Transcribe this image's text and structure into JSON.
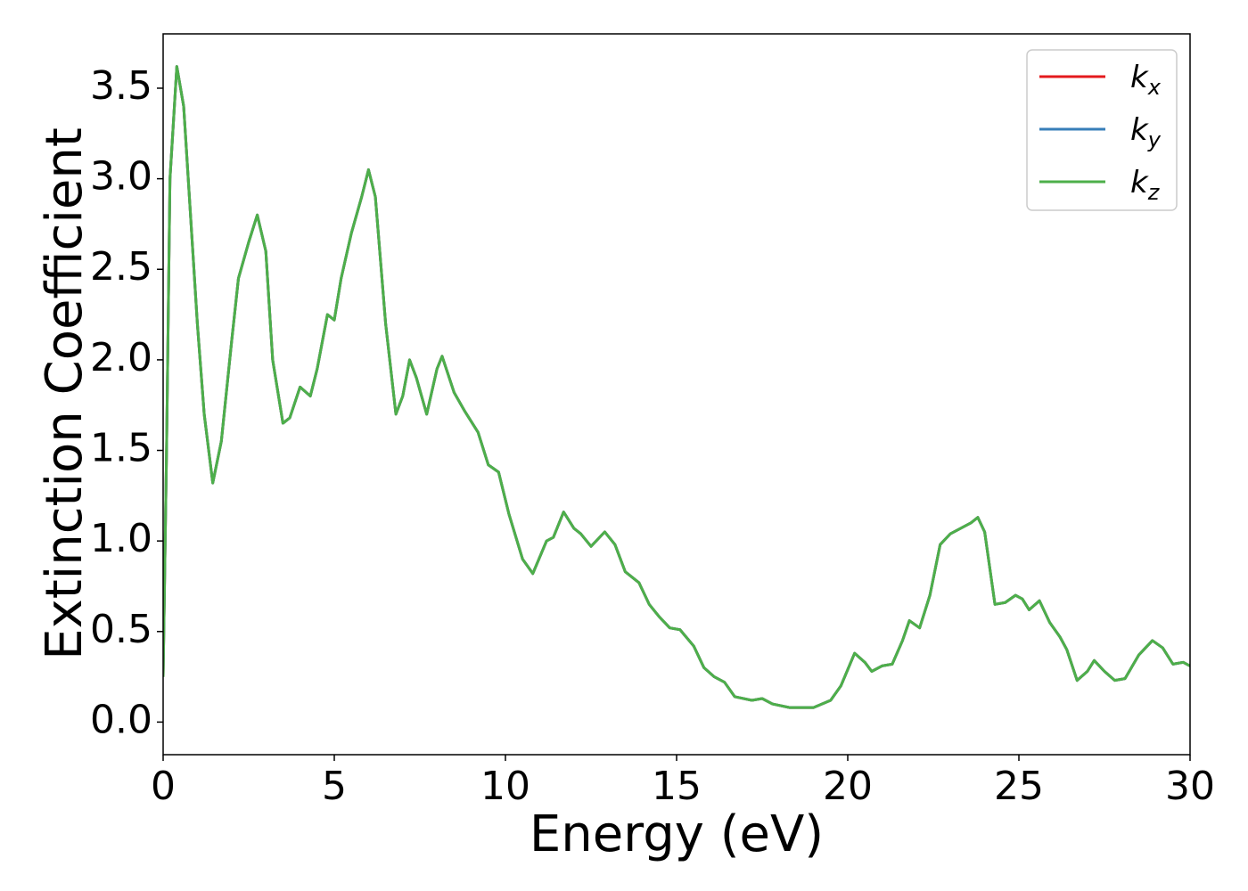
{
  "chart_data": {
    "type": "line",
    "xlabel": "Energy (eV)",
    "ylabel": "Extinction Coefficient",
    "xlim": [
      0,
      30
    ],
    "ylim": [
      -0.18,
      3.8
    ],
    "xticks": [
      0,
      5,
      10,
      15,
      20,
      25,
      30
    ],
    "yticks": [
      {
        "value": 0,
        "label": "0.0"
      },
      0.5,
      {
        "value": 1,
        "label": "1.0"
      },
      1.5,
      {
        "value": 2,
        "label": "2.0"
      },
      2.5,
      {
        "value": 3,
        "label": "3.0"
      },
      3.5
    ],
    "legend": "upper right",
    "grid": false,
    "x": [
      0,
      0.1,
      0.2,
      0.4,
      0.6,
      0.8,
      1.0,
      1.2,
      1.45,
      1.7,
      2.0,
      2.2,
      2.5,
      2.75,
      3.0,
      3.2,
      3.5,
      3.7,
      4.0,
      4.3,
      4.5,
      4.8,
      5.0,
      5.2,
      5.5,
      5.8,
      6.0,
      6.2,
      6.5,
      6.8,
      7.0,
      7.2,
      7.4,
      7.7,
      8.0,
      8.15,
      8.5,
      8.8,
      9.2,
      9.5,
      9.8,
      10.1,
      10.5,
      10.8,
      11.2,
      11.4,
      11.7,
      12.0,
      12.2,
      12.5,
      12.9,
      13.2,
      13.5,
      13.9,
      14.2,
      14.5,
      14.8,
      15.1,
      15.5,
      15.8,
      16.1,
      16.4,
      16.7,
      17.2,
      17.5,
      17.8,
      18.3,
      19.0,
      19.5,
      19.8,
      20.2,
      20.5,
      20.7,
      21.0,
      21.3,
      21.6,
      21.8,
      22.1,
      22.4,
      22.7,
      23.0,
      23.3,
      23.6,
      23.8,
      24.0,
      24.3,
      24.6,
      24.9,
      25.1,
      25.3,
      25.6,
      25.9,
      26.2,
      26.4,
      26.7,
      27.0,
      27.2,
      27.5,
      27.8,
      28.1,
      28.5,
      28.9,
      29.2,
      29.5,
      29.8,
      30.0
    ],
    "series": [
      {
        "name": "kx",
        "color": "#e41a1c",
        "values": [
          0.25,
          1.5,
          3.0,
          3.62,
          3.4,
          2.8,
          2.2,
          1.7,
          1.32,
          1.55,
          2.1,
          2.45,
          2.65,
          2.8,
          2.6,
          2.0,
          1.65,
          1.68,
          1.85,
          1.8,
          1.95,
          2.25,
          2.22,
          2.45,
          2.7,
          2.9,
          3.05,
          2.9,
          2.2,
          1.7,
          1.8,
          2.0,
          1.9,
          1.7,
          1.95,
          2.02,
          1.82,
          1.72,
          1.6,
          1.42,
          1.38,
          1.15,
          0.9,
          0.82,
          1.0,
          1.02,
          1.16,
          1.07,
          1.04,
          0.97,
          1.05,
          0.98,
          0.83,
          0.77,
          0.65,
          0.58,
          0.52,
          0.51,
          0.42,
          0.3,
          0.25,
          0.22,
          0.14,
          0.12,
          0.13,
          0.1,
          0.08,
          0.08,
          0.12,
          0.2,
          0.38,
          0.33,
          0.28,
          0.31,
          0.32,
          0.45,
          0.56,
          0.52,
          0.7,
          0.98,
          1.04,
          1.07,
          1.1,
          1.13,
          1.05,
          0.65,
          0.66,
          0.7,
          0.68,
          0.62,
          0.67,
          0.55,
          0.47,
          0.4,
          0.23,
          0.28,
          0.34,
          0.28,
          0.23,
          0.24,
          0.37,
          0.45,
          0.41,
          0.32,
          0.33,
          0.31
        ]
      },
      {
        "name": "ky",
        "color": "#377eb8",
        "values": [
          0.25,
          1.5,
          3.0,
          3.62,
          3.4,
          2.8,
          2.2,
          1.7,
          1.32,
          1.55,
          2.1,
          2.45,
          2.65,
          2.8,
          2.6,
          2.0,
          1.65,
          1.68,
          1.85,
          1.8,
          1.95,
          2.25,
          2.22,
          2.45,
          2.7,
          2.9,
          3.05,
          2.9,
          2.2,
          1.7,
          1.8,
          2.0,
          1.9,
          1.7,
          1.95,
          2.02,
          1.82,
          1.72,
          1.6,
          1.42,
          1.38,
          1.15,
          0.9,
          0.82,
          1.0,
          1.02,
          1.16,
          1.07,
          1.04,
          0.97,
          1.05,
          0.98,
          0.83,
          0.77,
          0.65,
          0.58,
          0.52,
          0.51,
          0.42,
          0.3,
          0.25,
          0.22,
          0.14,
          0.12,
          0.13,
          0.1,
          0.08,
          0.08,
          0.12,
          0.2,
          0.38,
          0.33,
          0.28,
          0.31,
          0.32,
          0.45,
          0.56,
          0.52,
          0.7,
          0.98,
          1.04,
          1.07,
          1.1,
          1.13,
          1.05,
          0.65,
          0.66,
          0.7,
          0.68,
          0.62,
          0.67,
          0.55,
          0.47,
          0.4,
          0.23,
          0.28,
          0.34,
          0.28,
          0.23,
          0.24,
          0.37,
          0.45,
          0.41,
          0.32,
          0.33,
          0.31
        ]
      },
      {
        "name": "kz",
        "color": "#4daf4a",
        "values": [
          0.25,
          1.5,
          3.0,
          3.62,
          3.4,
          2.8,
          2.2,
          1.7,
          1.32,
          1.55,
          2.1,
          2.45,
          2.65,
          2.8,
          2.6,
          2.0,
          1.65,
          1.68,
          1.85,
          1.8,
          1.95,
          2.25,
          2.22,
          2.45,
          2.7,
          2.9,
          3.05,
          2.9,
          2.2,
          1.7,
          1.8,
          2.0,
          1.9,
          1.7,
          1.95,
          2.02,
          1.82,
          1.72,
          1.6,
          1.42,
          1.38,
          1.15,
          0.9,
          0.82,
          1.0,
          1.02,
          1.16,
          1.07,
          1.04,
          0.97,
          1.05,
          0.98,
          0.83,
          0.77,
          0.65,
          0.58,
          0.52,
          0.51,
          0.42,
          0.3,
          0.25,
          0.22,
          0.14,
          0.12,
          0.13,
          0.1,
          0.08,
          0.08,
          0.12,
          0.2,
          0.38,
          0.33,
          0.28,
          0.31,
          0.32,
          0.45,
          0.56,
          0.52,
          0.7,
          0.98,
          1.04,
          1.07,
          1.1,
          1.13,
          1.05,
          0.65,
          0.66,
          0.7,
          0.68,
          0.62,
          0.67,
          0.55,
          0.47,
          0.4,
          0.23,
          0.28,
          0.34,
          0.28,
          0.23,
          0.24,
          0.37,
          0.45,
          0.41,
          0.32,
          0.33,
          0.31
        ]
      }
    ]
  }
}
